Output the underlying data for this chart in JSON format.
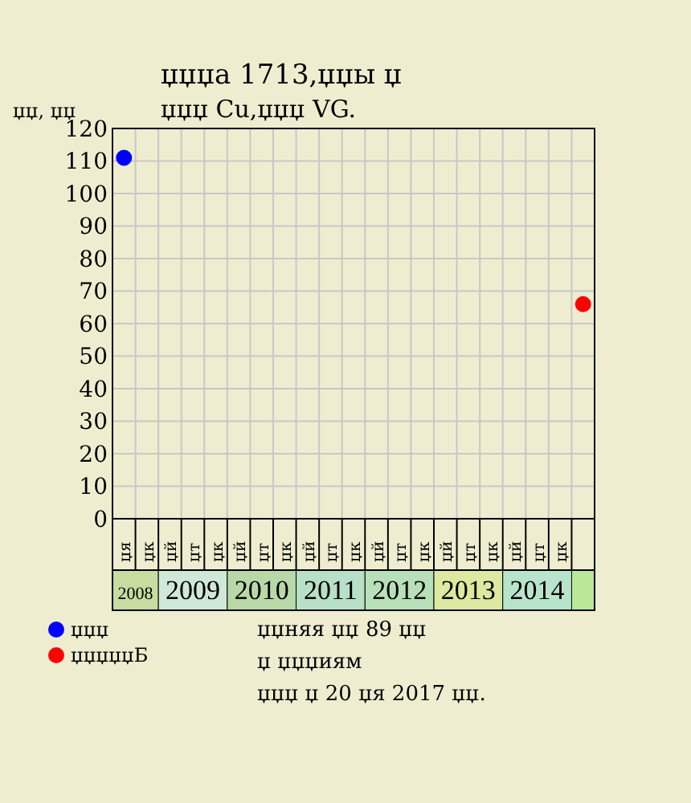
{
  "chart_data": {
    "type": "scatter",
    "title": "џџџа 1713,џџы џ",
    "subtitle": "џџџ Cu,џџџ VG.",
    "ylabel": "џџ, џџ",
    "categories": [
      "џя",
      "џк",
      "џй",
      "џт",
      "џк",
      "џй",
      "џт",
      "џк",
      "џй",
      "џт",
      "џк",
      "џй",
      "џт",
      "џк",
      "џй",
      "џт",
      "џк",
      "џй",
      "џт",
      "џк",
      null
    ],
    "series": [
      {
        "name": "џџџ",
        "color": "#0000ff",
        "values": [
          111,
          null,
          null,
          null,
          null,
          null,
          null,
          null,
          null,
          null,
          null,
          null,
          null,
          null,
          null,
          null,
          null,
          null,
          null,
          null,
          null
        ]
      },
      {
        "name": "џџџџџБ",
        "color": "#ff0000",
        "values": [
          null,
          null,
          null,
          null,
          null,
          null,
          null,
          null,
          null,
          null,
          null,
          null,
          null,
          null,
          null,
          null,
          null,
          null,
          null,
          null,
          66
        ]
      }
    ],
    "ylim": [
      0,
      120
    ],
    "yticks": [
      0,
      10,
      20,
      30,
      40,
      50,
      60,
      70,
      80,
      90,
      100,
      110,
      120
    ],
    "grid": true,
    "marker": "circle",
    "legend": "bottom left",
    "annotations": [
      "2008",
      "2009",
      "2010",
      "2011",
      "2012",
      "2013",
      "2014",
      "џџняя џџ 89 џџ",
      "џ џџџиям",
      "џџџ џ 20 џя 2017 џџ."
    ]
  }
}
